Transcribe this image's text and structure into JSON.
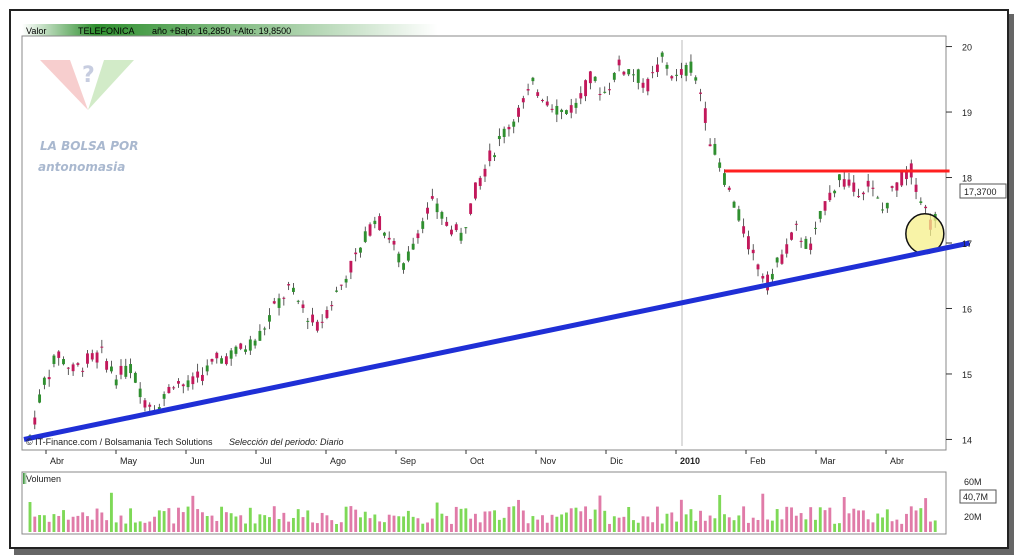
{
  "header": {
    "valor_label": "Valor",
    "ticker": "TELEFONICA",
    "range_text": "año +Bajo: 16,2850 +Alto: 19,8500"
  },
  "logo": {
    "line1": "LA BOLSA POR",
    "line2": "antonomasia"
  },
  "footer": {
    "credit": "© IT-Finance.com / Bolsamania Tech Solutions",
    "period": "Selección del periodo: Diario"
  },
  "volume_panel": {
    "label": "Volumen",
    "current_badge": "40,7M",
    "ticks": [
      "60M",
      "20M"
    ]
  },
  "price_badge": "17,3700",
  "colors": {
    "up_candle": "#2f8f2f",
    "down_candle": "#c2185b",
    "resistance": "#ff2020",
    "trendline": "#1f2fd6",
    "highlight_circle": "#f5ef8a",
    "vol_up": "#7ed957",
    "vol_down": "#e07ba8",
    "header_green": "#2f8f2f"
  },
  "chart_data": {
    "type": "candlestick",
    "title": "TELEFONICA",
    "x_tick_labels": [
      "Abr",
      "May",
      "Jun",
      "Jul",
      "Ago",
      "Sep",
      "Oct",
      "Nov",
      "Dic",
      "2010",
      "Feb",
      "Mar",
      "Abr"
    ],
    "y_ticks": [
      14,
      15,
      16,
      17,
      18,
      19,
      20
    ],
    "ylim": [
      13.9,
      20.1
    ],
    "year_low": 16.285,
    "year_high": 19.85,
    "last_price": 17.37,
    "price_path": [
      [
        0,
        14.05
      ],
      [
        3,
        14.9
      ],
      [
        6,
        15.3
      ],
      [
        9,
        15.05
      ],
      [
        12,
        15.2
      ],
      [
        15,
        15.3
      ],
      [
        18,
        14.95
      ],
      [
        21,
        15.1
      ],
      [
        24,
        14.6
      ],
      [
        27,
        14.5
      ],
      [
        30,
        14.9
      ],
      [
        33,
        14.8
      ],
      [
        36,
        15.0
      ],
      [
        39,
        15.2
      ],
      [
        42,
        15.3
      ],
      [
        45,
        15.4
      ],
      [
        48,
        15.6
      ],
      [
        51,
        16.0
      ],
      [
        54,
        16.3
      ],
      [
        57,
        16.0
      ],
      [
        60,
        15.7
      ],
      [
        63,
        16.1
      ],
      [
        66,
        16.5
      ],
      [
        69,
        16.9
      ],
      [
        72,
        17.4
      ],
      [
        75,
        17.1
      ],
      [
        78,
        16.6
      ],
      [
        81,
        17.2
      ],
      [
        84,
        17.6
      ],
      [
        87,
        17.3
      ],
      [
        90,
        17.1
      ],
      [
        93,
        17.8
      ],
      [
        96,
        18.3
      ],
      [
        99,
        18.7
      ],
      [
        102,
        19.0
      ],
      [
        105,
        19.4
      ],
      [
        108,
        19.2
      ],
      [
        111,
        19.0
      ],
      [
        114,
        19.1
      ],
      [
        117,
        19.5
      ],
      [
        120,
        19.3
      ],
      [
        123,
        19.7
      ],
      [
        126,
        19.6
      ],
      [
        129,
        19.4
      ],
      [
        132,
        19.8
      ],
      [
        135,
        19.5
      ],
      [
        138,
        19.7
      ],
      [
        140,
        19.3
      ],
      [
        142,
        18.6
      ],
      [
        145,
        18.0
      ],
      [
        148,
        17.4
      ],
      [
        151,
        16.8
      ],
      [
        154,
        16.4
      ],
      [
        157,
        16.8
      ],
      [
        160,
        17.2
      ],
      [
        163,
        16.9
      ],
      [
        166,
        17.6
      ],
      [
        169,
        18.0
      ],
      [
        172,
        17.8
      ],
      [
        175,
        17.9
      ],
      [
        178,
        17.5
      ],
      [
        181,
        17.9
      ],
      [
        184,
        18.1
      ],
      [
        186,
        17.7
      ],
      [
        188,
        17.3
      ],
      [
        189,
        17.37
      ]
    ],
    "total_days": 190,
    "resistance": {
      "value": 18.1,
      "from_day": 145,
      "to_day": 192
    },
    "trendline": {
      "from": [
        0,
        14.0
      ],
      "to": [
        192,
        17.0
      ]
    },
    "highlight": {
      "day": 186,
      "value": 17.05
    }
  }
}
